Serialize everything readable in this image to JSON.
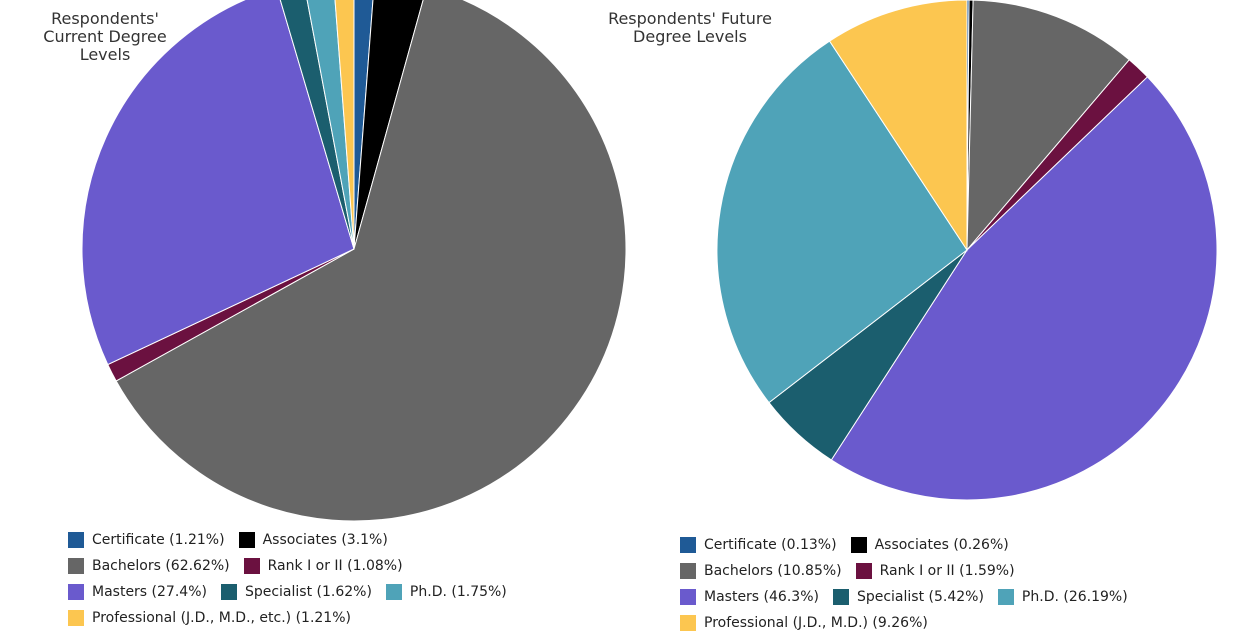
{
  "chart_data": [
    {
      "type": "pie",
      "title": "Respondents' Current Degree Levels",
      "categories": [
        "Certificate (1.21%)",
        "Associates (3.1%)",
        "Bachelors (62.62%)",
        "Rank I or II (1.08%)",
        "Masters (27.4%)",
        "Specialist (1.62%)",
        "Ph.D. (1.75%)",
        "Professional (J.D., M.D., etc.) (1.21%)"
      ],
      "values": [
        1.21,
        3.1,
        62.62,
        1.08,
        27.4,
        1.62,
        1.75,
        1.21
      ],
      "colors": [
        "#1f5a96",
        "#000000",
        "#666666",
        "#6b1140",
        "#6a5acd",
        "#1b5e6e",
        "#4fa3b8",
        "#fcc650"
      ]
    },
    {
      "type": "pie",
      "title": "Respondents' Future Degree Levels",
      "categories": [
        "Certificate (0.13%)",
        "Associates (0.26%)",
        "Bachelors (10.85%)",
        "Rank I or II (1.59%)",
        "Masters (46.3%)",
        "Specialist (5.42%)",
        "Ph.D. (26.19%)",
        "Professional (J.D., M.D.) (9.26%)"
      ],
      "values": [
        0.13,
        0.26,
        10.85,
        1.59,
        46.3,
        5.42,
        26.19,
        9.26
      ],
      "colors": [
        "#1f5a96",
        "#000000",
        "#666666",
        "#6b1140",
        "#6a5acd",
        "#1b5e6e",
        "#4fa3b8",
        "#fcc650"
      ]
    }
  ]
}
